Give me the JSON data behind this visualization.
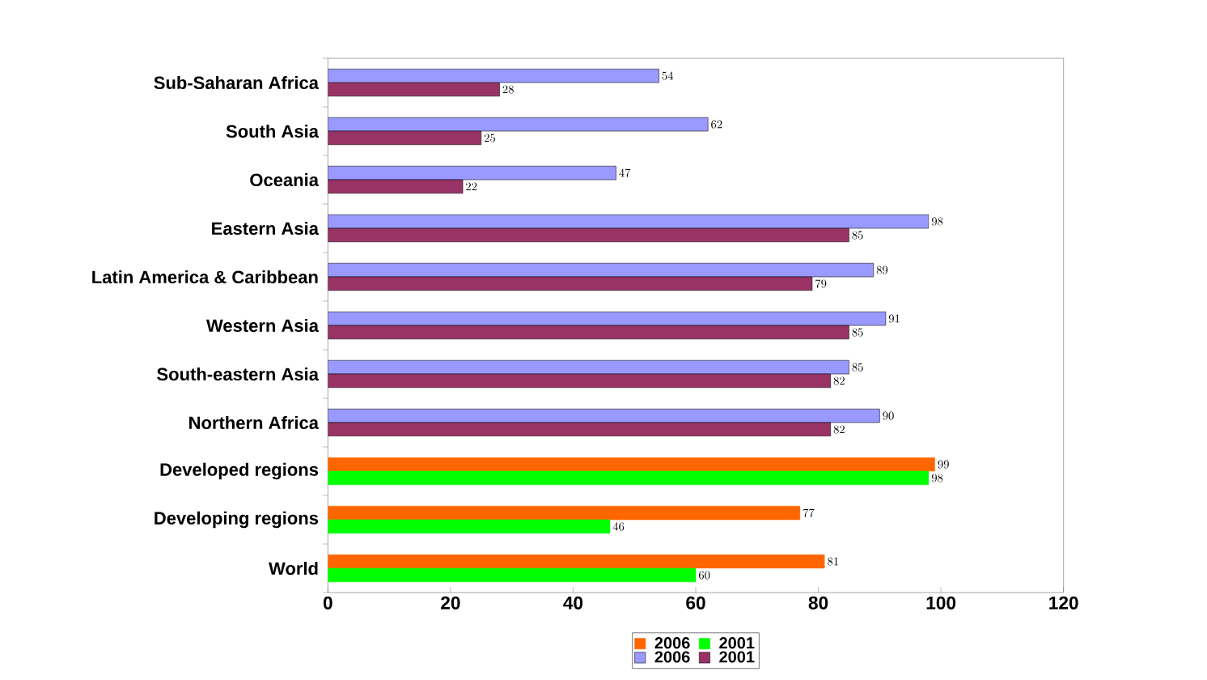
{
  "chart_data": {
    "type": "bar",
    "orientation": "horizontal",
    "categories": [
      "Sub-Saharan Africa",
      "South Asia",
      "Oceania",
      "Eastern Asia",
      "Latin America & Caribbean",
      "Western Asia",
      "South-eastern Asia",
      "Northern Africa",
      "Developed regions",
      "Developing regions",
      "World"
    ],
    "series": [
      {
        "name": "2006",
        "color": "#ff6600",
        "values": [
          null,
          null,
          null,
          null,
          null,
          null,
          null,
          null,
          99,
          77,
          81
        ]
      },
      {
        "name": "2001",
        "color": "#00ff00",
        "values": [
          null,
          null,
          null,
          null,
          null,
          null,
          null,
          null,
          98,
          46,
          60
        ]
      },
      {
        "name": "2006",
        "color": "#9999ff",
        "values": [
          54,
          62,
          47,
          98,
          89,
          91,
          85,
          90,
          null,
          null,
          null
        ]
      },
      {
        "name": "2001",
        "color": "#993366",
        "values": [
          28,
          25,
          22,
          85,
          79,
          85,
          82,
          82,
          null,
          null,
          null
        ]
      }
    ],
    "xlim": [
      0,
      120
    ],
    "xticks": [
      0,
      20,
      40,
      60,
      80,
      100,
      120
    ],
    "data_labels": true,
    "legend": "bottom",
    "grid": false
  }
}
